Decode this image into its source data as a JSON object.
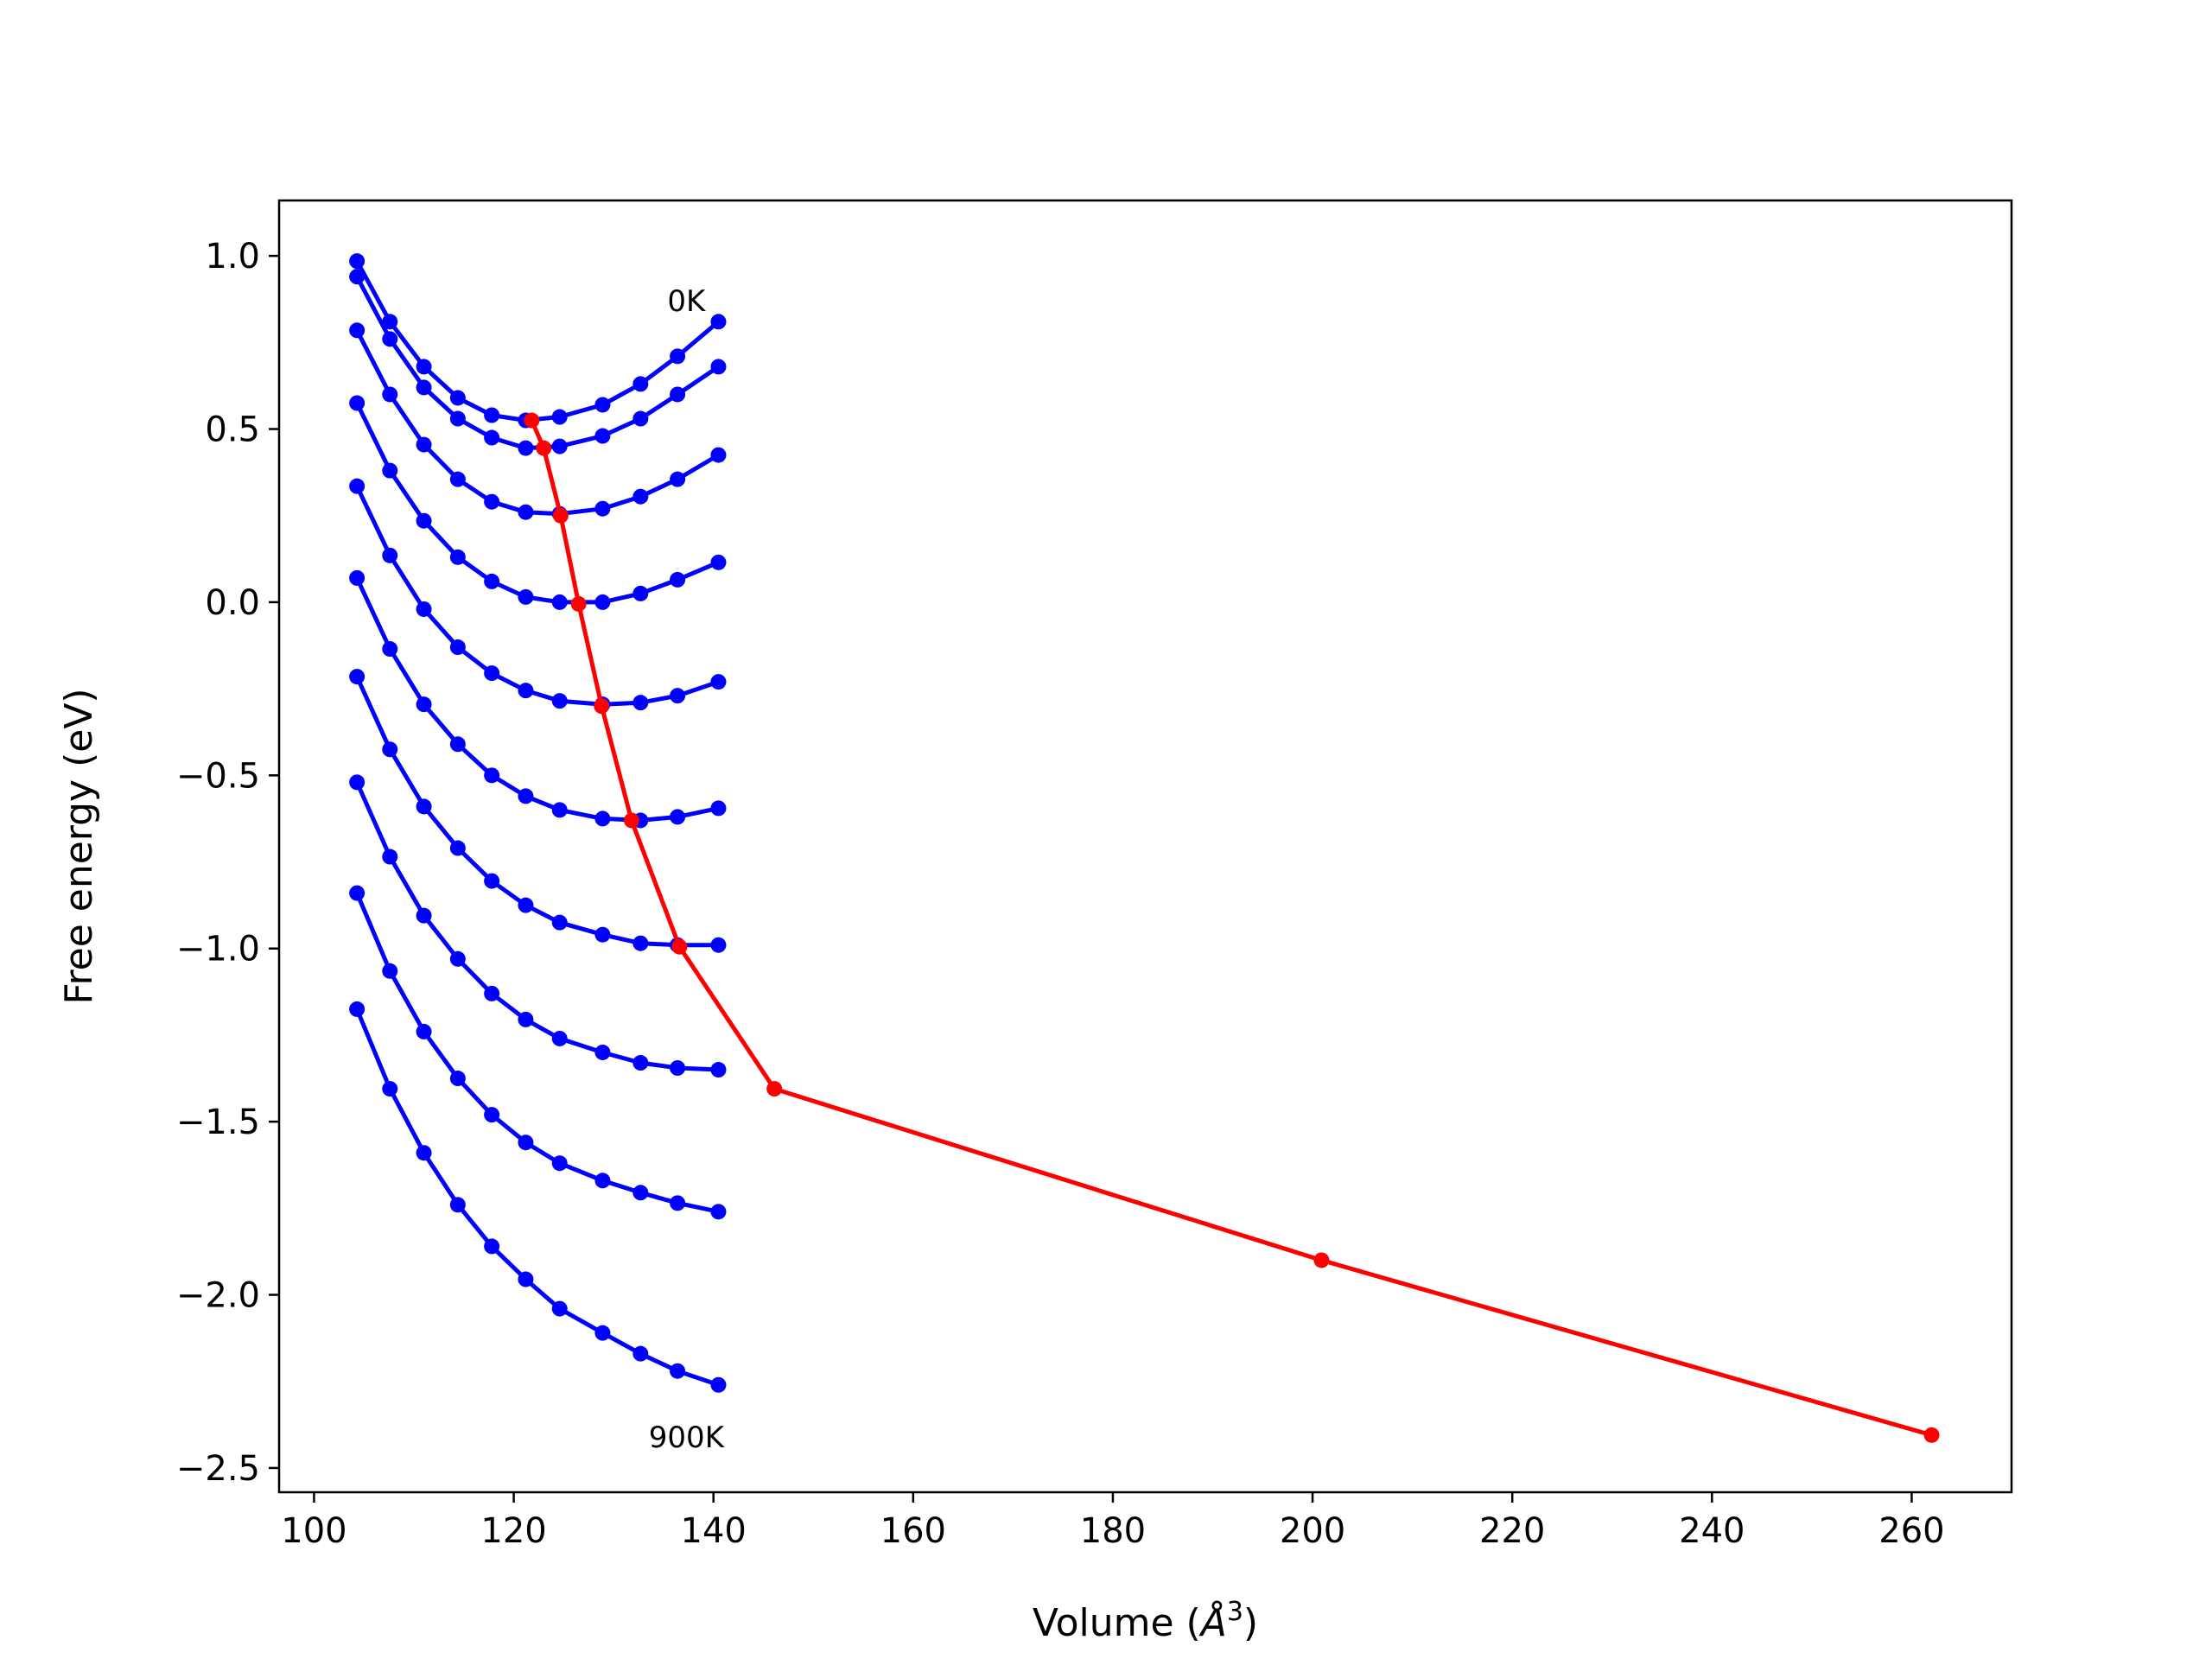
{
  "chart_data": {
    "type": "line",
    "title": "",
    "xlabel": "Volume (Å³)",
    "xlabel_parts": {
      "prefix": "Volume (",
      "symbol": "Å",
      "sup": "3",
      "suffix": ")"
    },
    "ylabel": "Free energy (eV)",
    "xlim": [
      96.5,
      270
    ],
    "ylim": [
      -2.57,
      1.16
    ],
    "xticks": [
      100,
      120,
      140,
      160,
      180,
      200,
      220,
      240,
      260
    ],
    "yticks": [
      1.0,
      0.5,
      0.0,
      -0.5,
      -1.0,
      -1.5,
      -2.0,
      -2.5
    ],
    "ytick_labels": [
      "1.0",
      "0.5",
      "0.0",
      "−0.5",
      "−1.0",
      "−1.5",
      "−2.0",
      "−2.5"
    ],
    "grid": false,
    "x": [
      104.3,
      107.6,
      111.0,
      114.4,
      117.8,
      121.2,
      124.6,
      128.9,
      132.7,
      136.4,
      140.5
    ],
    "series": [
      {
        "values": [
          0.985,
          0.81,
          0.68,
          0.59,
          0.54,
          0.525,
          0.535,
          0.57,
          0.63,
          0.71,
          0.81
        ],
        "color": "#0000ff"
      },
      {
        "values": [
          0.94,
          0.76,
          0.62,
          0.53,
          0.475,
          0.445,
          0.45,
          0.48,
          0.53,
          0.6,
          0.68
        ],
        "color": "#0000ff"
      },
      {
        "values": [
          0.785,
          0.6,
          0.455,
          0.355,
          0.29,
          0.26,
          0.255,
          0.27,
          0.305,
          0.355,
          0.425
        ],
        "color": "#0000ff"
      },
      {
        "values": [
          0.575,
          0.38,
          0.235,
          0.13,
          0.06,
          0.015,
          0.0,
          0.0,
          0.025,
          0.065,
          0.115
        ],
        "color": "#0000ff"
      },
      {
        "values": [
          0.335,
          0.135,
          -0.02,
          -0.13,
          -0.205,
          -0.255,
          -0.285,
          -0.295,
          -0.29,
          -0.27,
          -0.23
        ],
        "color": "#0000ff"
      },
      {
        "values": [
          0.07,
          -0.135,
          -0.295,
          -0.41,
          -0.5,
          -0.56,
          -0.6,
          -0.625,
          -0.63,
          -0.62,
          -0.595
        ],
        "color": "#0000ff"
      },
      {
        "values": [
          -0.215,
          -0.425,
          -0.59,
          -0.71,
          -0.805,
          -0.875,
          -0.925,
          -0.96,
          -0.985,
          -0.99,
          -0.99
        ],
        "color": "#0000ff"
      },
      {
        "values": [
          -0.52,
          -0.735,
          -0.905,
          -1.03,
          -1.13,
          -1.205,
          -1.26,
          -1.3,
          -1.33,
          -1.345,
          -1.35
        ],
        "color": "#0000ff"
      },
      {
        "values": [
          -0.84,
          -1.065,
          -1.24,
          -1.375,
          -1.48,
          -1.56,
          -1.62,
          -1.67,
          -1.705,
          -1.735,
          -1.76
        ],
        "color": "#0000ff"
      },
      {
        "values": [
          -1.175,
          -1.405,
          -1.59,
          -1.74,
          -1.86,
          -1.955,
          -2.04,
          -2.11,
          -2.17,
          -2.22,
          -2.26
        ],
        "color": "#0000ff"
      }
    ],
    "minima": {
      "color": "#ff0000",
      "x": [
        121.8,
        123.0,
        124.7,
        126.5,
        128.8,
        131.8,
        136.6,
        146.1,
        200.9,
        262.0
      ],
      "y": [
        0.525,
        0.445,
        0.25,
        -0.005,
        -0.3,
        -0.63,
        -0.995,
        -1.405,
        -1.9,
        -2.405
      ]
    },
    "annotations": [
      {
        "text": "0K",
        "x": 136.6,
        "y": 0.87
      },
      {
        "text": "900K",
        "x": 136.6,
        "y": -2.41
      }
    ]
  }
}
